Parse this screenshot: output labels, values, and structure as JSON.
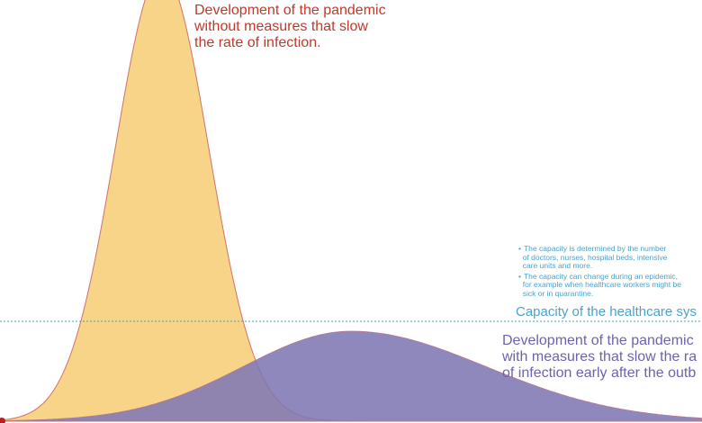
{
  "annotations": {
    "without_measures": [
      "Development of the pandemic",
      "without measures that slow",
      "the rate of infection."
    ],
    "with_measures": [
      "Development of the pandemic",
      "with measures that slow the ra",
      "of infection early after the outb"
    ],
    "capacity_label": "Capacity of the healthcare sys",
    "capacity_notes": [
      [
        "The capacity is determined by the number",
        "of doctors, nurses, hospital beds, intensive",
        "care units and more."
      ],
      [
        "The capacity can change during an epidemic,",
        "for example when healthcare workers might be",
        "sick or in quarantine."
      ]
    ]
  },
  "colors": {
    "no_measures_fill": "#f8d488",
    "no_measures_stroke": "#d0706a",
    "measures_fill": "#7f78b4",
    "capacity_line": "#4aa3a8",
    "red_text": "#c0392b",
    "purple_text": "#6f62ad",
    "blue_text": "#4ba3c9"
  }
}
